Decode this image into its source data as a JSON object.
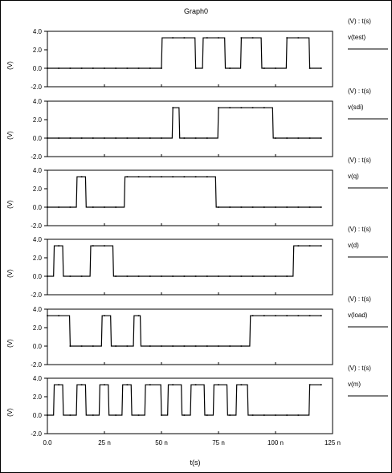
{
  "window": {
    "title": "Graph0"
  },
  "x_axis": {
    "label": "t(s)"
  },
  "chart_data": {
    "type": "line",
    "title": "Graph0",
    "xlabel": "t(s)",
    "xlim": [
      0,
      125
    ],
    "xticks": [
      0,
      25,
      50,
      75,
      100,
      125
    ],
    "xtick_labels": [
      "0.0",
      "25 n",
      "50 n",
      "75 n",
      "100 n",
      "125 n"
    ],
    "ylim": [
      -2.0,
      4.0
    ],
    "yticks": [
      4.0,
      2.0,
      0.0,
      -2.0
    ],
    "ytick_labels": [
      "4.0",
      "2.0",
      "0.0",
      "-2.0"
    ],
    "grid": false,
    "legend": "right",
    "panels": [
      {
        "ylabel": "(V)",
        "legend_header": "(V) : t(s)",
        "series": [
          {
            "name": "v(test)",
            "color": "#000000",
            "x": [
              0,
              50,
              50.3,
              64.7,
              65,
              68,
              68.3,
              77.7,
              78,
              84.7,
              85,
              93.7,
              94,
              104.7,
              105,
              114.7,
              115,
              120
            ],
            "y": [
              0,
              0,
              3.3,
              3.3,
              0,
              0,
              3.3,
              3.3,
              0,
              0,
              3.3,
              3.3,
              0,
              0,
              3.3,
              3.3,
              0,
              0
            ]
          }
        ]
      },
      {
        "ylabel": "(V)",
        "legend_header": "(V) : t(s)",
        "series": [
          {
            "name": "v(sdi)",
            "color": "#000000",
            "x": [
              0,
              54.7,
              55,
              57.7,
              58,
              74.7,
              75,
              98.7,
              99,
              120
            ],
            "y": [
              0,
              0,
              3.3,
              3.3,
              0,
              0,
              3.3,
              3.3,
              0,
              0
            ]
          }
        ]
      },
      {
        "ylabel": "(V)",
        "legend_header": "(V) : t(s)",
        "series": [
          {
            "name": "v(q)",
            "color": "#000000",
            "x": [
              0,
              12.7,
              13,
              16.7,
              17,
              33.7,
              34,
              73.7,
              74,
              120
            ],
            "y": [
              0,
              0,
              3.3,
              3.3,
              0,
              0,
              3.3,
              3.3,
              0,
              0
            ]
          }
        ]
      },
      {
        "ylabel": "(V)",
        "legend_header": "(V) : t(s)",
        "series": [
          {
            "name": "v(d)",
            "color": "#000000",
            "x": [
              0,
              2.7,
              3,
              6.7,
              7,
              18.7,
              19,
              28.7,
              29,
              107.7,
              108,
              120
            ],
            "y": [
              0,
              0,
              3.3,
              3.3,
              0,
              0,
              3.3,
              3.3,
              0,
              0,
              3.3,
              3.3
            ]
          }
        ]
      },
      {
        "ylabel": "(V)",
        "legend_header": "(V) : t(s)",
        "series": [
          {
            "name": "v(load)",
            "color": "#000000",
            "x": [
              0,
              9.7,
              10,
              23.7,
              24,
              27.7,
              28,
              37.7,
              38,
              40.7,
              41,
              88.7,
              89,
              120
            ],
            "y": [
              3.3,
              3.3,
              0,
              0,
              3.3,
              3.3,
              0,
              0,
              3.3,
              3.3,
              0,
              0,
              3.3,
              3.3
            ]
          }
        ]
      },
      {
        "ylabel": "(V)",
        "legend_header": "(V) : t(s)",
        "series": [
          {
            "name": "v(m)",
            "color": "#000000",
            "x": [
              0,
              2.7,
              3,
              6.7,
              7,
              12.7,
              13,
              16.7,
              17,
              22.7,
              23,
              26.7,
              27,
              32.7,
              33,
              36.7,
              37,
              42.7,
              43,
              49.7,
              50,
              52.7,
              53,
              58.7,
              59,
              62.7,
              63,
              68.7,
              69,
              72.7,
              73,
              78.7,
              79,
              82.7,
              83,
              87.7,
              88,
              94.7,
              95,
              114.7,
              115,
              120
            ],
            "y": [
              0,
              0,
              3.3,
              3.3,
              0,
              0,
              3.3,
              3.3,
              0,
              0,
              3.3,
              3.3,
              0,
              0,
              3.3,
              3.3,
              0,
              0,
              3.3,
              3.3,
              0,
              0,
              3.3,
              3.3,
              0,
              0,
              3.3,
              3.3,
              0,
              0,
              3.3,
              3.3,
              0,
              0,
              3.3,
              3.3,
              0,
              0,
              0,
              0,
              3.3,
              3.3
            ]
          }
        ]
      }
    ]
  }
}
